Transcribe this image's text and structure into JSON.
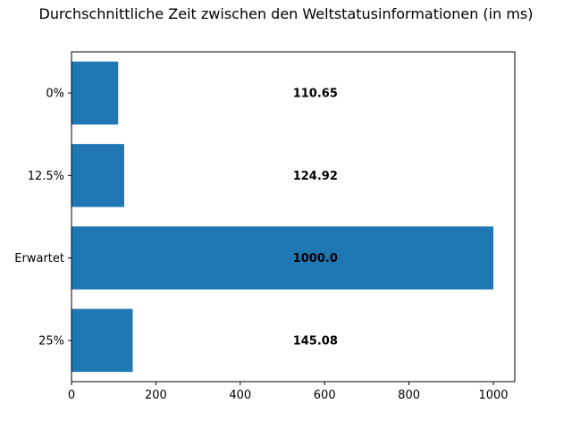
{
  "chart_data": {
    "type": "bar",
    "orientation": "horizontal",
    "title": "Durchschnittliche Zeit zwischen den Weltstatusinformationen (in ms)",
    "xlabel": "",
    "ylabel": "",
    "categories": [
      "0%",
      "12.5%",
      "Erwartet",
      "25%"
    ],
    "values": [
      110.65,
      124.92,
      1000.0,
      145.08
    ],
    "value_labels": [
      "110.65",
      "124.92",
      "1000.0",
      "145.08"
    ],
    "xlim": [
      0,
      1050
    ],
    "xticks": [
      0,
      200,
      400,
      600,
      800,
      1000
    ],
    "xtick_labels": [
      "0",
      "200",
      "400",
      "600",
      "800",
      "1000"
    ],
    "grid": false,
    "bar_color": "#1f77b4"
  }
}
